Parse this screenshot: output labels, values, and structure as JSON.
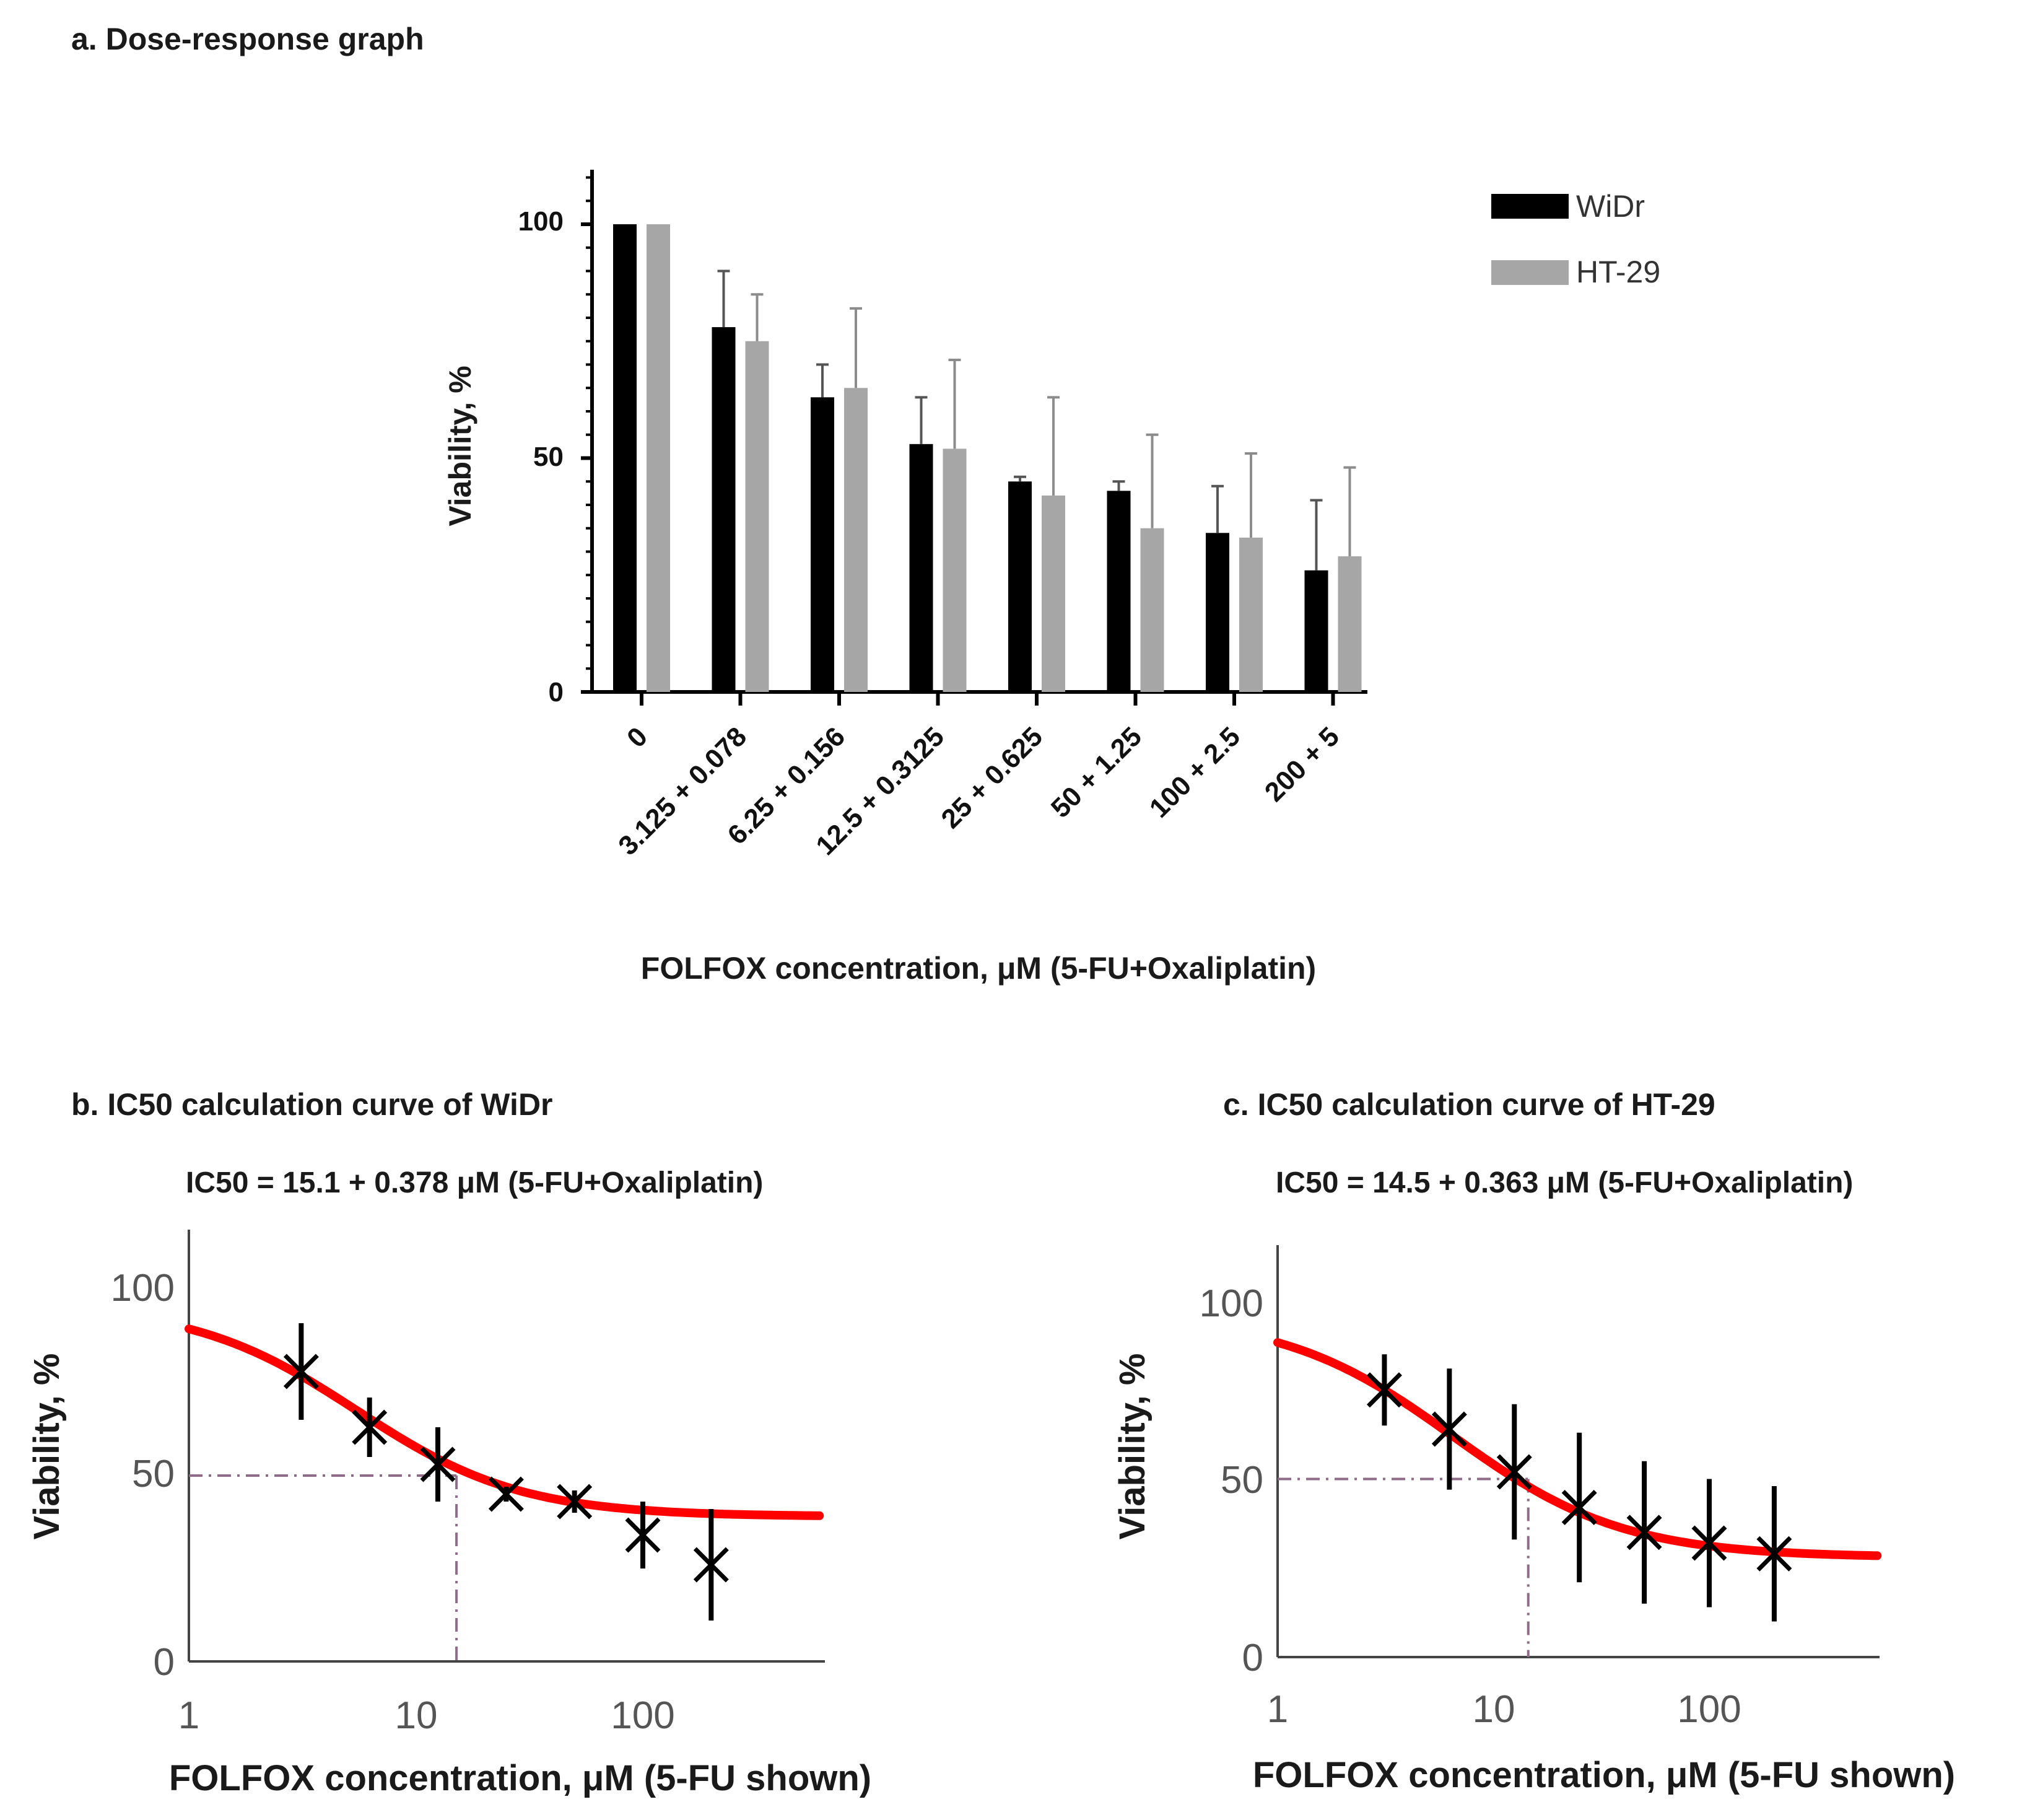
{
  "chart_data": [
    {
      "id": "a",
      "type": "bar",
      "title": "a. Dose-response graph",
      "xlabel": "FOLFOX concentration, μM  (5-FU+Oxaliplatin)",
      "ylabel": "Viability,  %",
      "ylim": [
        0,
        110
      ],
      "yticks": [
        0,
        50,
        100
      ],
      "categories": [
        "0",
        "3.125 + 0.078",
        "6.25 + 0.156",
        "12.5 + 0.3125",
        "25 + 0.625",
        "50 + 1.25",
        "100 + 2.5",
        "200 + 5"
      ],
      "series": [
        {
          "name": "WiDr",
          "color": "#000000",
          "values": [
            100,
            78,
            63,
            53,
            45,
            43,
            34,
            26
          ],
          "errors": [
            0,
            12,
            7,
            10,
            1,
            2,
            10,
            15
          ]
        },
        {
          "name": "HT-29",
          "color": "#a6a6a6",
          "values": [
            100,
            75,
            65,
            52,
            42,
            35,
            33,
            29
          ],
          "errors": [
            0,
            10,
            17,
            19,
            21,
            20,
            18,
            19
          ]
        }
      ],
      "legend_position": "top-right"
    },
    {
      "id": "b",
      "type": "scatter",
      "title": "b. IC50 calculation curve of WiDr",
      "annotation": "IC50 = 15.1 + 0.378 μM (5-FU+Oxaliplatin)",
      "xlabel": "FOLFOX concentration, μM (5-FU shown)",
      "ylabel": "Viability, %",
      "xscale": "log",
      "xlim": [
        1,
        600
      ],
      "ylim": [
        0,
        115
      ],
      "xticks": [
        "1",
        "10",
        "100"
      ],
      "yticks": [
        "0",
        "50",
        "100"
      ],
      "x": [
        3.125,
        6.25,
        12.5,
        25,
        50,
        100,
        200
      ],
      "y": [
        78,
        63,
        53,
        45,
        43,
        34,
        26
      ],
      "yerr": [
        13,
        8,
        10,
        2,
        3,
        9,
        15
      ],
      "fit": {
        "top": 96,
        "bottom": 39,
        "ic50": 5.5,
        "hill": 1.2,
        "color": "#ff0000"
      },
      "ic50_marker": {
        "x": 15.1,
        "y": 50
      }
    },
    {
      "id": "c",
      "type": "scatter",
      "title": "c. IC50 calculation curve of HT-29",
      "annotation": "IC50 = 14.5 + 0.363 μM (5-FU+Oxaliplatin)",
      "xlabel": "FOLFOX concentration, μM (5-FU shown)",
      "ylabel": "Viability, %",
      "xscale": "log",
      "xlim": [
        1,
        600
      ],
      "ylim": [
        0,
        115
      ],
      "xticks": [
        "1",
        "10",
        "100"
      ],
      "yticks": [
        "0",
        "50",
        "100"
      ],
      "x": [
        3.125,
        6.25,
        12.5,
        25,
        50,
        100,
        200
      ],
      "y": [
        75,
        64,
        52,
        42,
        35,
        32,
        29
      ],
      "yerr": [
        10,
        17,
        19,
        21,
        20,
        18,
        19
      ],
      "fit": {
        "top": 96,
        "bottom": 28,
        "ic50": 6.5,
        "hill": 1.1,
        "color": "#ff0000"
      },
      "ic50_marker": {
        "x": 14.5,
        "y": 50
      }
    }
  ]
}
